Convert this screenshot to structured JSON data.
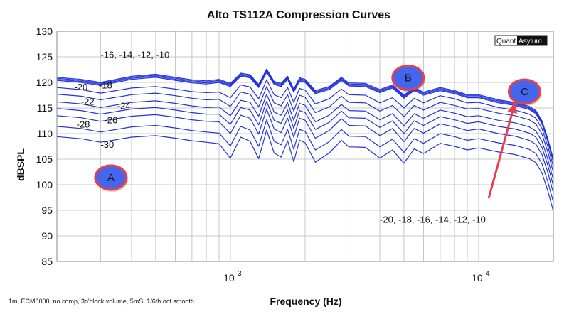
{
  "chart_data": {
    "type": "line",
    "title": "Alto TS112A Compression Curves",
    "xlabel": "Frequency (Hz)",
    "ylabel": "dBSPL",
    "xscale": "log",
    "xlim": [
      200,
      20000
    ],
    "ylim": [
      85,
      130
    ],
    "yticks": [
      85,
      90,
      95,
      100,
      105,
      110,
      115,
      120,
      125,
      130
    ],
    "xticks": [
      {
        "value": 1000,
        "base": "10",
        "exp": "3"
      },
      {
        "value": 10000,
        "base": "10",
        "exp": "4"
      }
    ],
    "grid": true,
    "line_color": "#2233dd",
    "frequencies": [
      200,
      250,
      300,
      400,
      500,
      600,
      700,
      800,
      900,
      1000,
      1100,
      1200,
      1300,
      1400,
      1500,
      1600,
      1700,
      1800,
      1900,
      2000,
      2200,
      2500,
      2800,
      3000,
      3500,
      4000,
      4500,
      5000,
      5500,
      6000,
      7000,
      8000,
      9000,
      10000,
      12000,
      14000,
      16000,
      17000,
      18000,
      19000,
      20000
    ],
    "series": [
      {
        "name": "-10",
        "values": [
          121.0,
          120.6,
          120.0,
          121.2,
          121.6,
          121.0,
          120.5,
          120.3,
          120.6,
          119.8,
          121.8,
          121.5,
          119.6,
          122.6,
          120.2,
          119.8,
          121.2,
          118.7,
          120.9,
          120.6,
          118.4,
          119.2,
          121.0,
          119.9,
          119.8,
          118.6,
          119.5,
          117.5,
          119.0,
          118.1,
          119.0,
          118.4,
          117.6,
          117.6,
          116.6,
          116.1,
          115.3,
          114.5,
          112.5,
          109.0,
          105.0
        ]
      },
      {
        "name": "-12",
        "values": [
          120.8,
          120.4,
          119.8,
          121.0,
          121.4,
          120.8,
          120.3,
          120.1,
          120.4,
          119.6,
          121.6,
          121.3,
          119.4,
          122.4,
          120.0,
          119.6,
          121.0,
          118.5,
          120.7,
          120.4,
          118.2,
          119.0,
          120.8,
          119.7,
          119.6,
          118.4,
          119.3,
          117.3,
          118.8,
          117.9,
          118.8,
          118.2,
          117.4,
          117.4,
          116.4,
          115.9,
          115.1,
          114.3,
          112.3,
          108.8,
          104.8
        ]
      },
      {
        "name": "-14",
        "values": [
          120.6,
          120.2,
          119.6,
          120.8,
          121.2,
          120.6,
          120.1,
          119.9,
          120.2,
          119.4,
          121.4,
          121.1,
          119.2,
          122.2,
          119.8,
          119.4,
          120.8,
          118.3,
          120.5,
          120.2,
          118.0,
          118.8,
          120.6,
          119.5,
          119.4,
          118.2,
          119.1,
          117.1,
          118.6,
          117.7,
          118.6,
          118.0,
          117.2,
          117.2,
          116.2,
          115.7,
          114.9,
          114.1,
          112.1,
          108.6,
          104.6
        ]
      },
      {
        "name": "-16",
        "values": [
          120.4,
          120.0,
          119.4,
          120.6,
          121.0,
          120.4,
          119.9,
          119.7,
          120.0,
          119.2,
          121.2,
          120.9,
          119.0,
          122.0,
          119.6,
          119.2,
          120.6,
          118.1,
          120.3,
          120.0,
          117.8,
          118.6,
          120.4,
          119.3,
          119.2,
          118.0,
          118.9,
          116.9,
          118.4,
          117.5,
          118.4,
          117.8,
          117.0,
          117.0,
          116.0,
          115.5,
          114.7,
          113.9,
          111.9,
          108.4,
          104.4
        ]
      },
      {
        "name": "-18",
        "values": [
          119.0,
          118.6,
          117.9,
          118.9,
          119.2,
          118.7,
          118.2,
          118.0,
          118.1,
          117.0,
          119.5,
          119.1,
          116.8,
          120.5,
          117.6,
          117.0,
          119.0,
          116.1,
          118.8,
          118.5,
          115.8,
          116.8,
          118.7,
          117.6,
          117.5,
          116.0,
          117.0,
          115.0,
          116.9,
          116.0,
          117.4,
          116.8,
          116.0,
          116.1,
          115.1,
          114.6,
          113.8,
          113.0,
          111.0,
          107.5,
          103.5
        ]
      },
      {
        "name": "-20",
        "values": [
          117.7,
          117.3,
          116.6,
          117.6,
          117.9,
          117.4,
          116.9,
          116.6,
          116.7,
          115.3,
          118.1,
          117.7,
          115.2,
          119.2,
          116.0,
          115.4,
          117.6,
          114.4,
          117.5,
          117.1,
          114.1,
          115.2,
          117.3,
          116.1,
          116.0,
          114.4,
          115.5,
          113.3,
          115.5,
          114.6,
          116.1,
          115.5,
          114.8,
          114.9,
          114.0,
          113.5,
          112.7,
          111.9,
          109.9,
          106.4,
          102.4
        ]
      },
      {
        "name": "-22",
        "values": [
          116.2,
          115.8,
          115.1,
          116.1,
          116.4,
          115.9,
          115.4,
          115.1,
          115.2,
          113.5,
          116.5,
          116.1,
          113.4,
          117.7,
          114.2,
          113.6,
          116.0,
          112.6,
          115.9,
          115.5,
          112.3,
          113.6,
          115.7,
          114.5,
          114.4,
          112.7,
          113.9,
          111.5,
          113.9,
          113.0,
          114.6,
          114.0,
          113.3,
          113.5,
          112.6,
          112.1,
          111.3,
          110.5,
          108.5,
          105.0,
          101.0
        ]
      },
      {
        "name": "-24",
        "values": [
          114.9,
          114.5,
          113.8,
          114.8,
          115.1,
          114.6,
          114.1,
          113.8,
          113.8,
          111.8,
          115.1,
          114.6,
          111.7,
          116.3,
          112.6,
          112.0,
          114.6,
          111.0,
          114.5,
          114.1,
          110.8,
          112.2,
          114.4,
          113.1,
          113.0,
          111.2,
          112.5,
          110.0,
          112.5,
          111.6,
          113.3,
          112.7,
          112.0,
          112.3,
          111.4,
          110.9,
          110.1,
          109.3,
          107.3,
          103.8,
          99.8
        ]
      },
      {
        "name": "-26",
        "values": [
          113.5,
          113.1,
          112.4,
          113.4,
          113.7,
          113.2,
          112.7,
          112.4,
          112.3,
          110.0,
          113.6,
          113.0,
          109.9,
          114.8,
          110.9,
          110.2,
          113.0,
          109.3,
          113.0,
          112.6,
          109.1,
          110.6,
          112.9,
          111.6,
          111.5,
          109.6,
          111.0,
          108.4,
          111.0,
          110.1,
          111.9,
          111.3,
          110.6,
          110.9,
          110.0,
          109.5,
          108.7,
          107.9,
          105.9,
          102.4,
          98.4
        ]
      },
      {
        "name": "-28",
        "values": [
          111.4,
          111.0,
          110.3,
          111.3,
          111.6,
          111.1,
          110.6,
          110.3,
          110.1,
          107.6,
          111.4,
          110.7,
          107.5,
          112.7,
          108.5,
          107.8,
          110.8,
          106.9,
          110.8,
          110.4,
          106.8,
          108.4,
          110.8,
          109.5,
          109.4,
          107.4,
          108.9,
          106.3,
          109.0,
          108.1,
          110.0,
          109.4,
          108.7,
          109.0,
          108.2,
          107.7,
          106.9,
          106.1,
          104.1,
          100.6,
          96.6
        ]
      },
      {
        "name": "-30",
        "values": [
          109.4,
          109.0,
          108.3,
          109.3,
          109.6,
          109.1,
          108.6,
          108.3,
          108.0,
          105.2,
          109.3,
          108.5,
          105.1,
          110.7,
          106.2,
          105.4,
          108.6,
          104.5,
          108.7,
          108.2,
          104.4,
          106.2,
          108.7,
          107.4,
          107.3,
          105.2,
          106.8,
          104.2,
          107.0,
          106.1,
          108.1,
          107.5,
          106.8,
          107.2,
          106.4,
          105.9,
          105.1,
          104.3,
          102.3,
          98.8,
          94.8
        ]
      }
    ],
    "annotations": [
      {
        "text": "-16, -14, -12, -10",
        "x": 300,
        "y": 124.8
      },
      {
        "text": "-20",
        "x": 235,
        "y": 118.5
      },
      {
        "text": "-18",
        "x": 295,
        "y": 118.8
      },
      {
        "text": "-22",
        "x": 250,
        "y": 115.6
      },
      {
        "text": "-24",
        "x": 350,
        "y": 114.8
      },
      {
        "text": "-26",
        "x": 310,
        "y": 112.0
      },
      {
        "text": "-28",
        "x": 240,
        "y": 111.2
      },
      {
        "text": "-30",
        "x": 300,
        "y": 107.2
      },
      {
        "text": "-20, -18, -16, -14, -12, -10",
        "x": 4000,
        "y": 92.6
      }
    ],
    "markers": [
      {
        "label": "A",
        "x": 330,
        "y": 101.4
      },
      {
        "label": "B",
        "x": 5200,
        "y": 120.9
      },
      {
        "label": "C",
        "x": 15300,
        "y": 118.2
      }
    ],
    "arrow": {
      "from": [
        11000,
        97.5
      ],
      "to": [
        14000,
        116.0
      ],
      "color": "#e8404a"
    },
    "marker_fill": "#4466ee",
    "marker_stroke": "#e8404a"
  },
  "brand": {
    "left": "Quant",
    "right": "Asylum"
  },
  "footnote": "1m, ECM8000, no comp, 3o'clock volume, 5mS, 1/6th oct smooth"
}
